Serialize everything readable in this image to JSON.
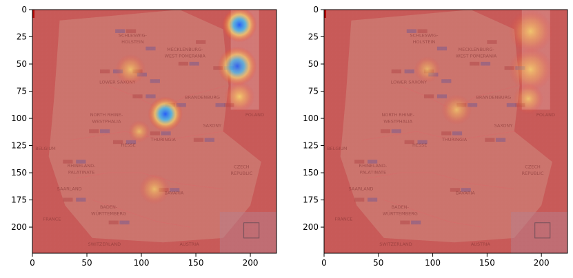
{
  "figure": {
    "background": "#ffffff",
    "panels": [
      {
        "id": "left",
        "description": "saliency heatmap overlay on map of Germany",
        "x_ticks": [
          0,
          50,
          100,
          150,
          200
        ],
        "y_ticks": [
          0,
          25,
          50,
          75,
          100,
          125,
          150,
          175,
          200
        ],
        "xlim": [
          0,
          224
        ],
        "ylim": [
          224,
          0
        ],
        "hotspots": [
          {
            "x": 190,
            "y": 14,
            "r": 16,
            "strength": 1.0
          },
          {
            "x": 188,
            "y": 52,
            "r": 18,
            "strength": 0.8
          },
          {
            "x": 190,
            "y": 80,
            "r": 14,
            "strength": 0.7
          },
          {
            "x": 122,
            "y": 96,
            "r": 16,
            "strength": 1.0
          },
          {
            "x": 90,
            "y": 55,
            "r": 14,
            "strength": 0.45
          },
          {
            "x": 98,
            "y": 112,
            "r": 10,
            "strength": 0.35
          },
          {
            "x": 112,
            "y": 165,
            "r": 14,
            "strength": 0.35
          }
        ]
      },
      {
        "id": "right",
        "description": "saliency heatmap overlay on map of Germany",
        "x_ticks": [
          0,
          50,
          100,
          150,
          200
        ],
        "y_ticks": [
          0,
          25,
          50,
          75,
          100,
          125,
          150,
          175,
          200
        ],
        "xlim": [
          0,
          224
        ],
        "ylim": [
          224,
          0
        ],
        "hotspots": [
          {
            "x": 190,
            "y": 20,
            "r": 20,
            "strength": 0.55
          },
          {
            "x": 190,
            "y": 55,
            "r": 20,
            "strength": 0.55
          },
          {
            "x": 188,
            "y": 82,
            "r": 14,
            "strength": 0.45
          },
          {
            "x": 122,
            "y": 92,
            "r": 14,
            "strength": 0.35
          },
          {
            "x": 95,
            "y": 55,
            "r": 12,
            "strength": 0.25
          }
        ]
      }
    ],
    "map_labels": [
      {
        "text": "NORTH RHINE-",
        "x": 68,
        "y": 98
      },
      {
        "text": "WESTPHALIA",
        "x": 68,
        "y": 104
      },
      {
        "text": "LOWER SAXONY",
        "x": 78,
        "y": 68
      },
      {
        "text": "MECKLENBURG-",
        "x": 140,
        "y": 38
      },
      {
        "text": "WEST POMERANIA",
        "x": 140,
        "y": 44
      },
      {
        "text": "BRANDENBURG",
        "x": 156,
        "y": 82
      },
      {
        "text": "SAXONY",
        "x": 165,
        "y": 108
      },
      {
        "text": "THURINGIA",
        "x": 120,
        "y": 121
      },
      {
        "text": "HESSE",
        "x": 88,
        "y": 126
      },
      {
        "text": "RHINELAND-",
        "x": 45,
        "y": 145
      },
      {
        "text": "PALATINATE",
        "x": 45,
        "y": 151
      },
      {
        "text": "SAARLAND",
        "x": 34,
        "y": 166
      },
      {
        "text": "BAVARIA",
        "x": 130,
        "y": 170
      },
      {
        "text": "BADEN-",
        "x": 70,
        "y": 183
      },
      {
        "text": "WÜRTTEMBERG",
        "x": 70,
        "y": 189
      },
      {
        "text": "CZECH",
        "x": 192,
        "y": 146
      },
      {
        "text": "REPUBLIC",
        "x": 192,
        "y": 152
      },
      {
        "text": "POLAND",
        "x": 204,
        "y": 98
      },
      {
        "text": "BELGIUM",
        "x": 12,
        "y": 129
      },
      {
        "text": "FRANCE",
        "x": 18,
        "y": 194
      },
      {
        "text": "SWITZERLAND",
        "x": 66,
        "y": 217
      },
      {
        "text": "AUSTRIA",
        "x": 144,
        "y": 217
      },
      {
        "text": "SCHLESWIG-",
        "x": 92,
        "y": 25
      },
      {
        "text": "HOLSTEIN",
        "x": 92,
        "y": 31
      }
    ],
    "colors": {
      "overlay": "#c84a4a",
      "land": "#c8857e",
      "hot": "#2a6fff",
      "warm": "#f2e35a",
      "frame": "#000000",
      "tick_text": "#000000"
    }
  }
}
